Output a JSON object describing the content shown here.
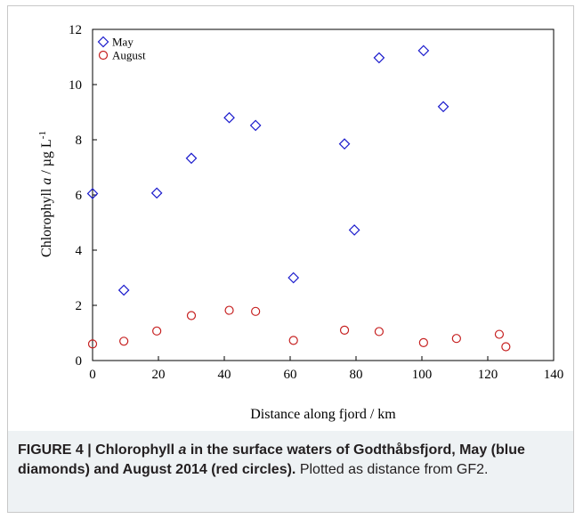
{
  "chart_data": {
    "type": "scatter",
    "xlabel": "Distance along fjord / km",
    "ylabel_parts": [
      "Chlorophyll ",
      "a",
      " / µg L",
      "-1"
    ],
    "xlim": [
      0,
      140
    ],
    "ylim": [
      0,
      12
    ],
    "xticks": [
      0,
      20,
      40,
      60,
      80,
      100,
      120,
      140
    ],
    "yticks": [
      0,
      2,
      4,
      6,
      8,
      10,
      12
    ],
    "legend_position": "top-left",
    "series": [
      {
        "name": "May",
        "marker": "diamond",
        "color": "#1a1acc",
        "points": [
          {
            "x": 0,
            "y": 6.05
          },
          {
            "x": 9.5,
            "y": 2.55
          },
          {
            "x": 19.5,
            "y": 6.07
          },
          {
            "x": 30,
            "y": 7.33
          },
          {
            "x": 41.5,
            "y": 8.8
          },
          {
            "x": 49.5,
            "y": 8.52
          },
          {
            "x": 61,
            "y": 3.0
          },
          {
            "x": 76.5,
            "y": 7.85
          },
          {
            "x": 79.5,
            "y": 4.73
          },
          {
            "x": 87,
            "y": 10.97
          },
          {
            "x": 100.5,
            "y": 11.23
          },
          {
            "x": 106.5,
            "y": 9.2
          }
        ]
      },
      {
        "name": "August",
        "marker": "circle",
        "color": "#c62020",
        "points": [
          {
            "x": 0,
            "y": 0.6
          },
          {
            "x": 9.5,
            "y": 0.7
          },
          {
            "x": 19.5,
            "y": 1.07
          },
          {
            "x": 30,
            "y": 1.63
          },
          {
            "x": 41.5,
            "y": 1.82
          },
          {
            "x": 49.5,
            "y": 1.78
          },
          {
            "x": 61,
            "y": 0.73
          },
          {
            "x": 76.5,
            "y": 1.1
          },
          {
            "x": 87,
            "y": 1.05
          },
          {
            "x": 100.5,
            "y": 0.65
          },
          {
            "x": 110.5,
            "y": 0.8
          },
          {
            "x": 123.5,
            "y": 0.95
          },
          {
            "x": 125.5,
            "y": 0.5
          }
        ]
      }
    ]
  },
  "caption": {
    "bold_prefix": "FIGURE 4 | Chlorophyll ",
    "bold_italic": "a",
    "bold_suffix": " in the surface waters of Godthåbsfjord, May (blue diamonds) and August 2014 (red circles).",
    "normal": " Plotted as distance from GF2."
  }
}
